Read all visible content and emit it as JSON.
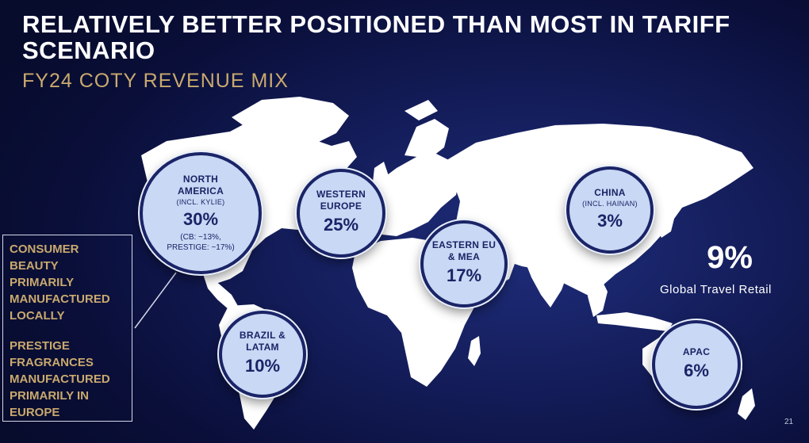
{
  "header": {
    "title": "RELATIVELY BETTER POSITIONED THAN MOST IN TARIFF SCENARIO",
    "subtitle": "FY24 COTY REVENUE MIX"
  },
  "regions": {
    "north_america": {
      "name": "NORTH AMERICA",
      "note": "(INCL. KYLIE)",
      "percent": "30%",
      "detail_1": "(CB: ~13%,",
      "detail_2": "PRESTIGE: ~17%)"
    },
    "western_europe": {
      "name": "WESTERN EUROPE",
      "percent": "25%"
    },
    "eastern_eu_mea": {
      "name": "EASTERN EU & MEA",
      "percent": "17%"
    },
    "china": {
      "name": "CHINA",
      "note": "(INCL. HAINAN)",
      "percent": "3%"
    },
    "brazil_latam": {
      "name": "BRAZIL & LATAM",
      "percent": "10%"
    },
    "apac": {
      "name": "APAC",
      "percent": "6%"
    }
  },
  "callout": {
    "consumer_beauty": "CONSUMER BEAUTY PRIMARILY MANUFACTURED LOCALLY",
    "prestige": "PRESTIGE FRAGRANCES MANUFACTURED PRIMARILY IN EUROPE"
  },
  "global_travel_retail": {
    "percent": "9%",
    "label": "Global Travel Retail"
  },
  "page_number": "21",
  "colors": {
    "background": "#0a0f3a",
    "accent_gold": "#c9a96e",
    "bubble_fill": "#c8d8f5",
    "bubble_text": "#1a2466",
    "map_land": "#ffffff"
  }
}
